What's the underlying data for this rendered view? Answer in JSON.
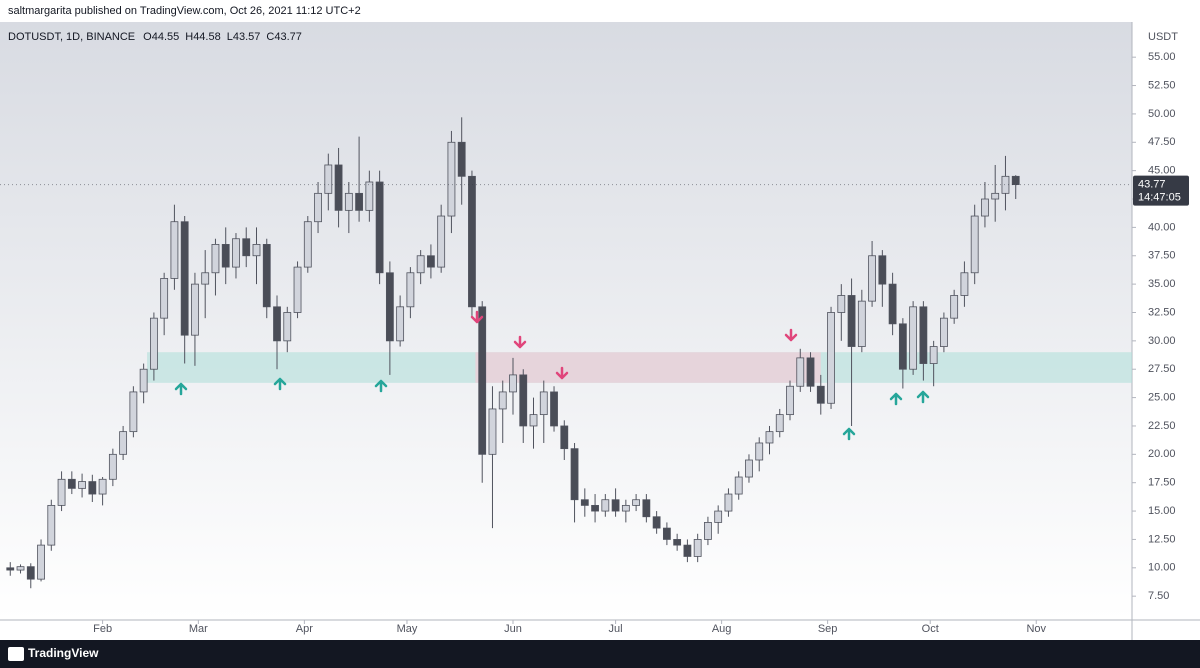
{
  "header": {
    "published": "saltmargarita published on TradingView.com, Oct 26, 2021 11:12 UTC+2"
  },
  "footer": {
    "brand": "TradingView"
  },
  "chart_data": {
    "type": "candlestick",
    "legend": {
      "symbol": "DOTUSDT, 1D, BINANCE",
      "ohlc": [
        {
          "label": "O",
          "value": 44.55
        },
        {
          "label": "H",
          "value": 44.58
        },
        {
          "label": "L",
          "value": 43.57
        },
        {
          "label": "C",
          "value": 43.77
        }
      ]
    },
    "y_unit": "USDT",
    "last_price": {
      "value": 43.77,
      "countdown": "14:47:05",
      "color": "#363a45"
    },
    "up_color": "#d1d4dc",
    "down_color": "#4a4d57",
    "wick_color": "#50535e",
    "xlim": [
      2,
      333
    ],
    "xticks": [
      {
        "value": 32,
        "label": "Feb"
      },
      {
        "value": 60,
        "label": "Mar"
      },
      {
        "value": 91,
        "label": "Apr"
      },
      {
        "value": 121,
        "label": "May"
      },
      {
        "value": 152,
        "label": "Jun"
      },
      {
        "value": 182,
        "label": "Jul"
      },
      {
        "value": 213,
        "label": "Aug"
      },
      {
        "value": 244,
        "label": "Sep"
      },
      {
        "value": 274,
        "label": "Oct"
      },
      {
        "value": 305,
        "label": "Nov"
      }
    ],
    "ylim": [
      5.4,
      58.1
    ],
    "yticks": [
      {
        "value": 7.5,
        "label": "7.50"
      },
      {
        "value": 10,
        "label": "10.00"
      },
      {
        "value": 12.5,
        "label": "12.50"
      },
      {
        "value": 15,
        "label": "15.00"
      },
      {
        "value": 17.5,
        "label": "17.50"
      },
      {
        "value": 20,
        "label": "20.00"
      },
      {
        "value": 22.5,
        "label": "22.50"
      },
      {
        "value": 25,
        "label": "25.00"
      },
      {
        "value": 27.5,
        "label": "27.50"
      },
      {
        "value": 30,
        "label": "30.00"
      },
      {
        "value": 32.5,
        "label": "32.50"
      },
      {
        "value": 35,
        "label": "35.00"
      },
      {
        "value": 37.5,
        "label": "37.50"
      },
      {
        "value": 40,
        "label": "40.00"
      },
      {
        "value": 42.5,
        "label": "42.50"
      },
      {
        "value": 45,
        "label": "45.00"
      },
      {
        "value": 47.5,
        "label": "47.50"
      },
      {
        "value": 50,
        "label": "50.00"
      },
      {
        "value": 52.5,
        "label": "52.50"
      },
      {
        "value": 55,
        "label": "55.00"
      }
    ],
    "zones": [
      {
        "from": 45,
        "to": 333,
        "low": 26.3,
        "high": 29,
        "color": "#b2dfdb"
      },
      {
        "from": 141,
        "to": 242,
        "low": 26.3,
        "high": 29,
        "color": "#f8c8d6"
      }
    ],
    "x": [
      5,
      8,
      11,
      14,
      17,
      20,
      23,
      26,
      29,
      32,
      35,
      38,
      41,
      44,
      47,
      50,
      53,
      56,
      59,
      62,
      65,
      68,
      71,
      74,
      77,
      80,
      83,
      86,
      89,
      92,
      95,
      98,
      101,
      104,
      107,
      110,
      113,
      116,
      119,
      122,
      125,
      128,
      131,
      134,
      137,
      140,
      143,
      146,
      149,
      152,
      155,
      158,
      161,
      164,
      167,
      170,
      173,
      176,
      179,
      182,
      185,
      188,
      191,
      194,
      197,
      200,
      203,
      206,
      209,
      212,
      215,
      218,
      221,
      224,
      227,
      230,
      233,
      236,
      239,
      242,
      245,
      248,
      251,
      254,
      257,
      260,
      263,
      266,
      269,
      272,
      275,
      278,
      281,
      284,
      287,
      290,
      293,
      296,
      299
    ],
    "open": [
      10,
      9.8,
      10.1,
      9,
      12,
      15.5,
      17.8,
      17,
      17.6,
      16.5,
      17.8,
      20,
      22,
      25.5,
      27.5,
      32,
      35.5,
      40.5,
      30.5,
      35,
      36,
      38.5,
      36.5,
      39,
      37.5,
      38.5,
      33,
      30,
      32.5,
      36.5,
      40.5,
      43,
      45.5,
      41.5,
      43,
      41.5,
      44,
      36,
      30,
      33,
      36,
      37.5,
      36.5,
      41,
      47.5,
      44.5,
      33,
      20,
      24,
      25.5,
      27,
      22.5,
      23.5,
      25.5,
      22.5,
      20.5,
      16,
      15.5,
      15,
      16,
      15,
      15.5,
      16,
      14.5,
      13.5,
      12.5,
      12,
      11,
      12.5,
      14,
      15,
      16.5,
      18,
      19.5,
      21,
      22,
      23.5,
      26,
      28.5,
      26,
      24.5,
      32.5,
      34,
      29.5,
      33.5,
      37.5,
      35,
      31.5,
      27.5,
      33,
      28,
      29.5,
      32,
      34,
      36,
      41,
      42.5,
      43,
      44.5
    ],
    "high": [
      10.5,
      10.3,
      10.4,
      12.5,
      16,
      18.5,
      18.5,
      18.3,
      18.2,
      18,
      20.5,
      22.5,
      26,
      28,
      32.5,
      36,
      42,
      41,
      36,
      38,
      39,
      40,
      39.5,
      40,
      40,
      39,
      34,
      33,
      37,
      41,
      44,
      46.5,
      47,
      44,
      48,
      45,
      45,
      37,
      34,
      36.5,
      38,
      38.5,
      42,
      48.5,
      49.7,
      45,
      33.5,
      26,
      26.5,
      28.5,
      27.5,
      25,
      26.5,
      26,
      23,
      21,
      17,
      16.5,
      16.5,
      17,
      16,
      16.5,
      16.5,
      15,
      14,
      13,
      12.5,
      13,
      14.5,
      15.5,
      17,
      18.5,
      20,
      21.5,
      22.5,
      24,
      26.5,
      29.3,
      29,
      27,
      33,
      35,
      35.5,
      34.5,
      38.8,
      38,
      36,
      32,
      33.5,
      33.5,
      30,
      32.5,
      34.5,
      37,
      42,
      44,
      45.5,
      46.3,
      44.6
    ],
    "low": [
      9.3,
      9.5,
      8.2,
      8.8,
      11.5,
      15,
      16.5,
      16.2,
      15.8,
      15.5,
      17.2,
      19.5,
      21.5,
      24.5,
      26.5,
      30.5,
      34.5,
      28,
      27.8,
      32,
      34,
      35,
      35.5,
      36.5,
      35,
      32,
      27.5,
      29,
      32,
      36,
      39.5,
      41.5,
      40,
      39.5,
      40.5,
      40.5,
      35,
      27,
      29.5,
      32,
      35,
      35.5,
      36,
      39.5,
      42,
      32,
      17.5,
      13.5,
      21,
      23.5,
      21,
      20.5,
      21,
      22,
      19.5,
      14,
      14.5,
      14,
      14.5,
      14.5,
      14,
      15,
      14,
      13,
      12,
      11.5,
      10.5,
      10.5,
      12,
      13,
      14.5,
      16,
      17.5,
      18.5,
      20,
      21.5,
      23,
      25.5,
      25.5,
      23.5,
      24,
      30,
      22.5,
      29,
      33,
      33,
      30.5,
      25.8,
      27,
      26.5,
      26,
      29,
      31.5,
      33,
      35,
      40,
      40.5,
      41.5,
      42.5
    ],
    "close": [
      9.8,
      10.1,
      9,
      12,
      15.5,
      17.8,
      17,
      17.6,
      16.5,
      17.8,
      20,
      22,
      25.5,
      27.5,
      32,
      35.5,
      40.5,
      30.5,
      35,
      36,
      38.5,
      36.5,
      39,
      37.5,
      38.5,
      33,
      30,
      32.5,
      36.5,
      40.5,
      43,
      45.5,
      41.5,
      43,
      41.5,
      44,
      36,
      30,
      33,
      36,
      37.5,
      36.5,
      41,
      47.5,
      44.5,
      33,
      20,
      24,
      25.5,
      27,
      22.5,
      23.5,
      25.5,
      22.5,
      20.5,
      16,
      15.5,
      15,
      16,
      15,
      15.5,
      16,
      14.5,
      13.5,
      12.5,
      12,
      11,
      12.5,
      14,
      15,
      16.5,
      18,
      19.5,
      21,
      22,
      23.5,
      26,
      28.5,
      26,
      24.5,
      32.5,
      34,
      29.5,
      33.5,
      37.5,
      35,
      31.5,
      27.5,
      33,
      28,
      29.5,
      32,
      34,
      36,
      41,
      42.5,
      43,
      44.5,
      43.77
    ]
  }
}
